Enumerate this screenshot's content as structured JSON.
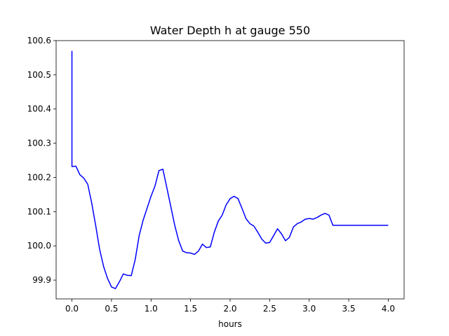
{
  "chart_data": {
    "type": "line",
    "title": "Water Depth h at gauge 550",
    "xlabel": "hours",
    "ylabel": "",
    "xlim": [
      -0.2,
      4.2
    ],
    "ylim": [
      99.845,
      100.6
    ],
    "xticks": [
      0.0,
      0.5,
      1.0,
      1.5,
      2.0,
      2.5,
      3.0,
      3.5,
      4.0
    ],
    "xtick_labels": [
      "0.0",
      "0.5",
      "1.0",
      "1.5",
      "2.0",
      "2.5",
      "3.0",
      "3.5",
      "4.0"
    ],
    "yticks": [
      99.9,
      100.0,
      100.1,
      100.2,
      100.3,
      100.4,
      100.5,
      100.6
    ],
    "ytick_labels": [
      "99.9",
      "100.0",
      "100.1",
      "100.2",
      "100.3",
      "100.4",
      "100.5",
      "100.6"
    ],
    "grid": false,
    "series": [
      {
        "name": "",
        "color": "#0000ff",
        "x": [
          0.0,
          0.0,
          0.0,
          0.05,
          0.1,
          0.15,
          0.2,
          0.25,
          0.3,
          0.35,
          0.4,
          0.45,
          0.5,
          0.55,
          0.6,
          0.65,
          0.7,
          0.75,
          0.8,
          0.85,
          0.9,
          0.95,
          1.0,
          1.05,
          1.1,
          1.15,
          1.2,
          1.25,
          1.3,
          1.35,
          1.4,
          1.45,
          1.5,
          1.55,
          1.6,
          1.65,
          1.7,
          1.75,
          1.8,
          1.85,
          1.9,
          1.95,
          2.0,
          2.05,
          2.1,
          2.15,
          2.2,
          2.25,
          2.3,
          2.35,
          2.4,
          2.45,
          2.5,
          2.55,
          2.6,
          2.65,
          2.7,
          2.75,
          2.8,
          2.85,
          2.9,
          2.95,
          3.0,
          3.05,
          3.1,
          3.15,
          3.2,
          3.25,
          3.3,
          3.35,
          3.4,
          3.45,
          3.5,
          3.55,
          3.6,
          3.65,
          3.7,
          3.75,
          3.8,
          3.85,
          3.9,
          3.95,
          4.0
        ],
        "y": [
          100.57,
          100.233,
          100.232,
          100.233,
          100.208,
          100.198,
          100.18,
          100.125,
          100.06,
          99.99,
          99.94,
          99.905,
          99.88,
          99.875,
          99.895,
          99.918,
          99.914,
          99.913,
          99.96,
          100.03,
          100.075,
          100.11,
          100.145,
          100.175,
          100.22,
          100.224,
          100.17,
          100.115,
          100.06,
          100.015,
          99.985,
          99.98,
          99.979,
          99.975,
          99.985,
          100.005,
          99.995,
          99.997,
          100.04,
          100.072,
          100.09,
          100.12,
          100.138,
          100.145,
          100.138,
          100.11,
          100.08,
          100.065,
          100.058,
          100.04,
          100.02,
          100.008,
          100.01,
          100.03,
          100.05,
          100.035,
          100.015,
          100.025,
          100.055,
          100.065,
          100.07,
          100.078,
          100.08,
          100.078,
          100.083,
          100.09,
          100.095,
          100.09,
          100.06,
          100.06,
          100.06,
          100.06,
          100.06,
          100.06,
          100.06,
          100.06,
          100.06,
          100.06,
          100.06,
          100.06,
          100.06,
          100.06,
          100.06
        ]
      }
    ]
  }
}
